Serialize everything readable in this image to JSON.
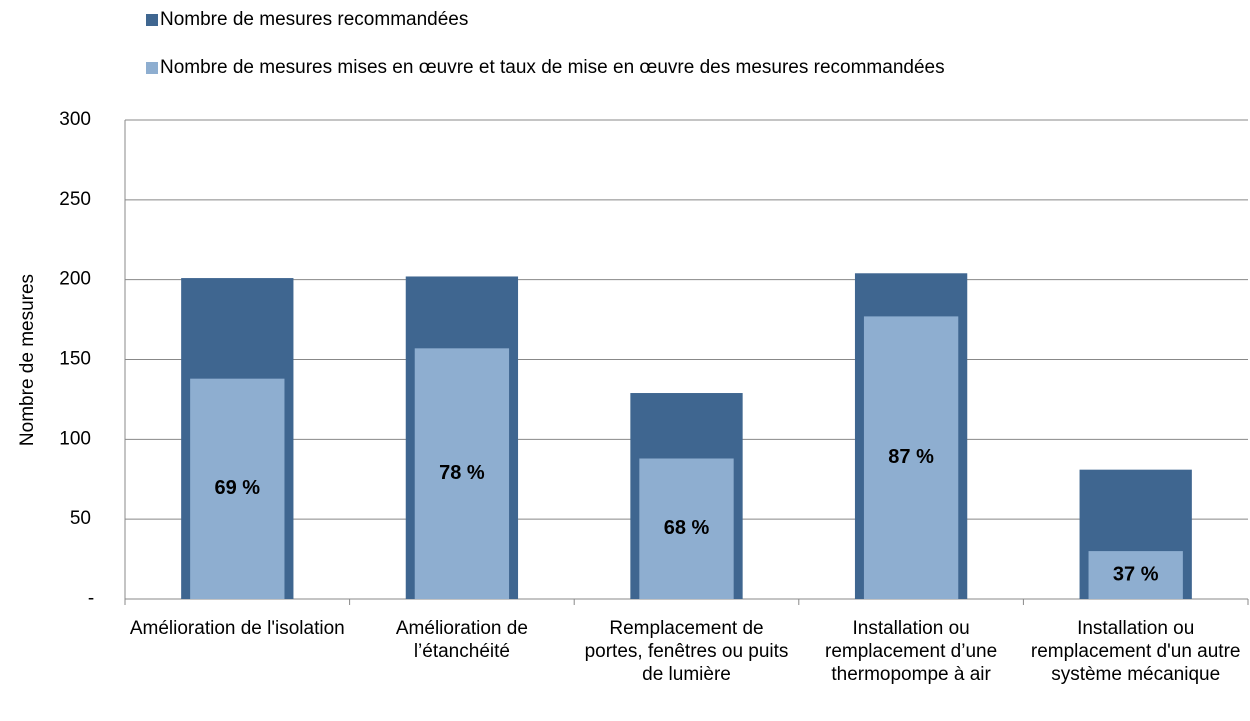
{
  "chart_data": {
    "type": "overlap-bar",
    "y_label": "Nombre de mesures",
    "categories": [
      "Amélioration de l'isolation",
      "Amélioration de l’étanchéité",
      "Remplacement de portes, fenêtres ou puits de lumière",
      "Installation ou remplacement d’une thermopompe à air",
      "Installation ou remplacement d'un autre système mécanique"
    ],
    "series": [
      {
        "name": "Nombre de mesures recommandées",
        "color": "#3f6690",
        "values": [
          201,
          202,
          129,
          204,
          81
        ]
      },
      {
        "name": "Nombre de mesures mises en œuvre et taux de mise en œuvre des mesures recommandées",
        "color": "#8eaed0",
        "values": [
          138,
          157,
          88,
          177,
          30
        ]
      }
    ],
    "rate_labels": [
      "69 %",
      "78 %",
      "68 %",
      "87 %",
      "37 %"
    ],
    "ylim": [
      0,
      300
    ],
    "yticks": [
      {
        "value": 0,
        "label": "-"
      },
      50,
      100,
      150,
      200,
      250,
      300
    ],
    "grid": true
  }
}
